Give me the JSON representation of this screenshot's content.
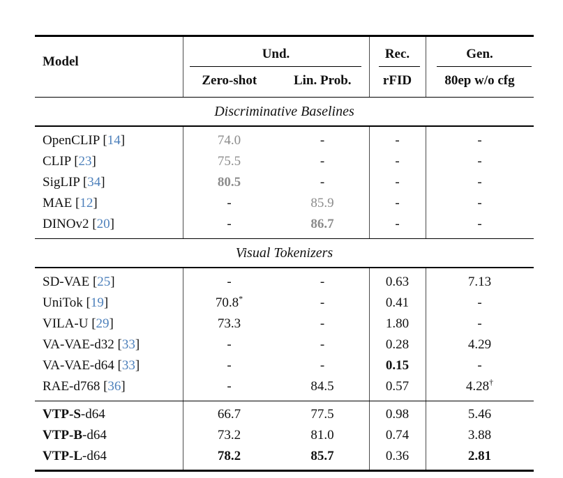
{
  "shared": {
    "bracket_open": "[",
    "bracket_close": "]"
  },
  "colors": {
    "citation_blue": "#4d80bb",
    "muted_gray": "#8c8c8c",
    "rule": "#000000"
  },
  "header": {
    "model": "Model",
    "und": "Und.",
    "rec": "Rec.",
    "gen": "Gen.",
    "zero_shot": "Zero-shot",
    "lin_prob": "Lin. Prob.",
    "rfid": "rFID",
    "gen_sub": "80ep w/o cfg"
  },
  "sections": [
    {
      "title": "Discriminative Baselines",
      "rows": [
        {
          "name": "OpenCLIP",
          "cite": "14",
          "zs": "74.0",
          "lp": "-",
          "rfid": "-",
          "gen": "-"
        },
        {
          "name": "CLIP",
          "cite": "23",
          "zs": "75.5",
          "lp": "-",
          "rfid": "-",
          "gen": "-"
        },
        {
          "name": "SigLIP",
          "cite": "34",
          "zs": "80.5",
          "lp": "-",
          "rfid": "-",
          "gen": "-"
        },
        {
          "name": "MAE",
          "cite": "12",
          "zs": "-",
          "lp": "85.9",
          "rfid": "-",
          "gen": "-"
        },
        {
          "name": "DINOv2",
          "cite": "20",
          "zs": "-",
          "lp": "86.7",
          "rfid": "-",
          "gen": "-"
        }
      ]
    },
    {
      "title": "Visual Tokenizers",
      "rows": [
        {
          "name": "SD-VAE",
          "cite": "25",
          "zs": "-",
          "lp": "-",
          "rfid": "0.63",
          "gen": "7.13"
        },
        {
          "name": "UniTok",
          "cite": "19",
          "zs": "70.8",
          "zs_sup": "*",
          "lp": "-",
          "rfid": "0.41",
          "gen": "-"
        },
        {
          "name": "VILA-U",
          "cite": "29",
          "zs": "73.3",
          "lp": "-",
          "rfid": "1.80",
          "gen": "-"
        },
        {
          "name": "VA-VAE-d32",
          "cite": "33",
          "zs": "-",
          "lp": "-",
          "rfid": "0.28",
          "gen": "4.29"
        },
        {
          "name": "VA-VAE-d64",
          "cite": "33",
          "zs": "-",
          "lp": "-",
          "rfid": "0.15",
          "gen": "-"
        },
        {
          "name": "RAE-d768",
          "cite": "36",
          "zs": "-",
          "lp": "84.5",
          "rfid": "0.57",
          "gen": "4.28",
          "gen_sup": "†"
        }
      ]
    },
    {
      "rows": [
        {
          "name_bold": "VTP-S",
          "name_rest": "-d64",
          "zs": "66.7",
          "lp": "77.5",
          "rfid": "0.98",
          "gen": "5.46"
        },
        {
          "name_bold": "VTP-B",
          "name_rest": "-d64",
          "zs": "73.2",
          "lp": "81.0",
          "rfid": "0.74",
          "gen": "3.88"
        },
        {
          "name_bold": "VTP-L",
          "name_rest": "-d64",
          "zs": "78.2",
          "lp": "85.7",
          "rfid": "0.36",
          "gen": "2.81"
        }
      ]
    }
  ]
}
